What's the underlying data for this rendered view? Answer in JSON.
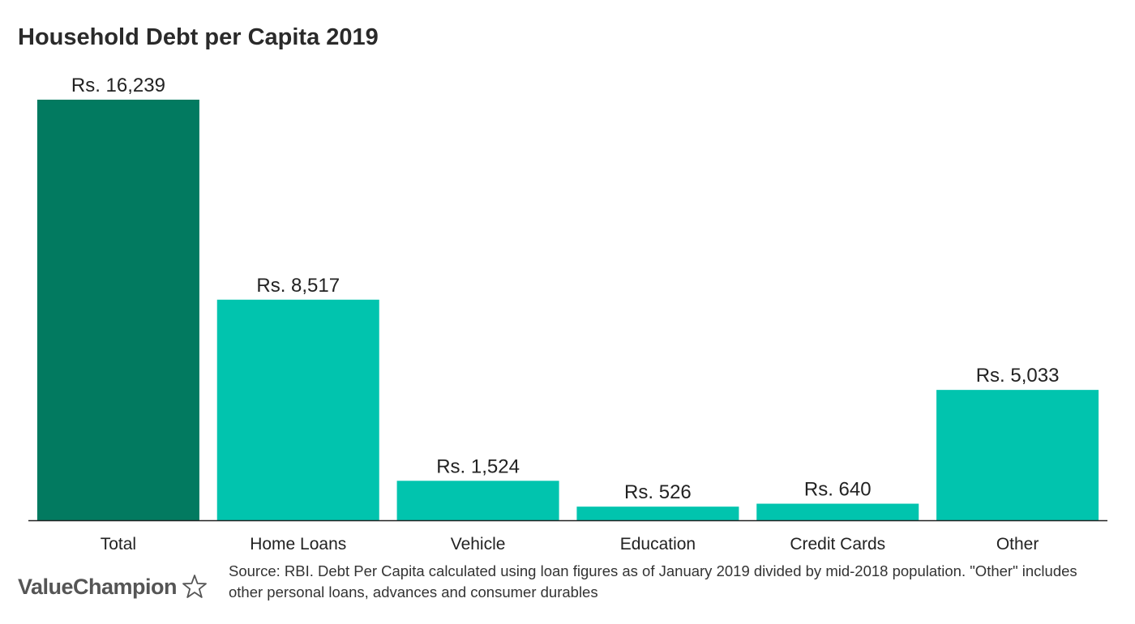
{
  "chart_data": {
    "type": "bar",
    "title": "Household Debt per Capita 2019",
    "categories": [
      "Total",
      "Home Loans",
      "Vehicle",
      "Education",
      "Credit Cards",
      "Other"
    ],
    "values": [
      16239,
      8517,
      1524,
      526,
      640,
      5033
    ],
    "data_labels": [
      "Rs. 16,239",
      "Rs. 8,517",
      "Rs. 1,524",
      "Rs. 526",
      "Rs. 640",
      "Rs. 5,033"
    ],
    "colors": [
      "#027a60",
      "#01c4ae",
      "#01c4ae",
      "#01c4ae",
      "#01c4ae",
      "#01c4ae"
    ],
    "xlabel": "",
    "ylabel": "",
    "ylim": [
      0,
      16239
    ],
    "grid": false,
    "legend": "none"
  },
  "footer": {
    "brand": "ValueChampion",
    "source_text": "Source: RBI. Debt Per Capita calculated using loan figures as of January 2019 divided by mid-2018 population. \"Other\" includes other personal loans, advances and consumer durables"
  },
  "colors": {
    "axis": "#222222",
    "label": "#222222",
    "brand": "#555555"
  }
}
